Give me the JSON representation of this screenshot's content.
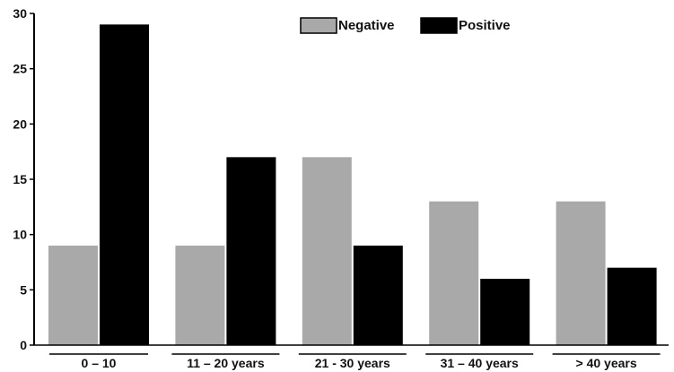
{
  "chart_data": {
    "type": "bar",
    "categories": [
      "0 – 10",
      "11 – 20 years",
      "21  -  30 years",
      "31 – 40 years",
      "> 40 years"
    ],
    "series": [
      {
        "name": "Negative",
        "values": [
          9,
          9,
          17,
          13,
          13
        ],
        "color": "#a9a9a9"
      },
      {
        "name": "Positive",
        "values": [
          29,
          17,
          9,
          6,
          7
        ],
        "color": "#000000"
      }
    ],
    "yticks": [
      0,
      5,
      10,
      15,
      20,
      25,
      30
    ],
    "ylim": [
      0,
      30
    ],
    "legend_position": "top-right",
    "grid": false
  }
}
